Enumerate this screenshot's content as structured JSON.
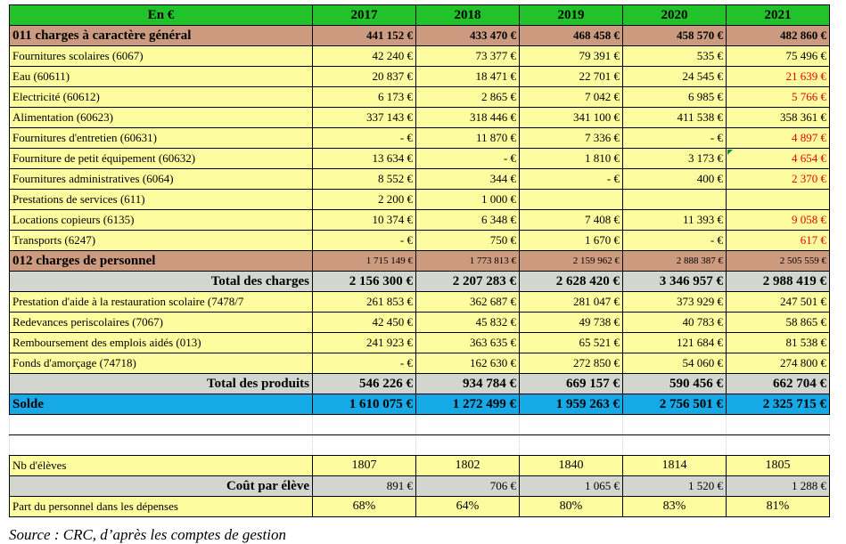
{
  "header": {
    "label": "En €",
    "years": [
      "2017",
      "2018",
      "2019",
      "2020",
      "2021"
    ]
  },
  "cat011": {
    "label": "011 charges à caractère général",
    "values": [
      "441 152 €",
      "433 470 €",
      "468 458 €",
      "458 570 €",
      "482 860 €"
    ]
  },
  "charges": [
    {
      "label": "Fournitures scolaires (6067)",
      "values": [
        "42 240 €",
        "73 377 €",
        "79 391 €",
        "535 €",
        "75 496 €"
      ],
      "red": [
        false,
        false,
        false,
        false,
        false
      ]
    },
    {
      "label": "Eau (60611)",
      "values": [
        "20 837 €",
        "18 471 €",
        "22 701 €",
        "24 545 €",
        "21 639 €"
      ],
      "red": [
        false,
        false,
        false,
        false,
        true
      ]
    },
    {
      "label": "Electricité (60612)",
      "values": [
        "6 173 €",
        "2 865 €",
        "7 042 €",
        "6 985 €",
        "5 766 €"
      ],
      "red": [
        false,
        false,
        false,
        false,
        true
      ]
    },
    {
      "label": "Alimentation (60623)",
      "values": [
        "337 143 €",
        "318 446 €",
        "341 100 €",
        "411 538 €",
        "358 361 €"
      ],
      "red": [
        false,
        false,
        false,
        false,
        false
      ]
    },
    {
      "label": "Fournitures d'entretien (60631)",
      "values": [
        "- €",
        "11 870 €",
        "7 336 €",
        "- €",
        "4 897 €"
      ],
      "red": [
        false,
        false,
        false,
        false,
        true
      ]
    },
    {
      "label": "Fourniture de petit équipement (60632)",
      "values": [
        "13 634 €",
        "- €",
        "1 810 €",
        "3 173 €",
        "4 654 €"
      ],
      "red": [
        false,
        false,
        false,
        false,
        true
      ]
    },
    {
      "label": "Fournitures administratives (6064)",
      "values": [
        "8 552 €",
        "344 €",
        "- €",
        "400 €",
        "2 370 €"
      ],
      "red": [
        false,
        false,
        false,
        false,
        true
      ]
    },
    {
      "label": "Prestations de services (611)",
      "values": [
        "2 200 €",
        "1 000 €",
        "",
        "",
        ""
      ],
      "red": [
        false,
        false,
        false,
        false,
        false
      ]
    },
    {
      "label": "Locations copieurs (6135)",
      "values": [
        "10 374 €",
        "6 348 €",
        "7 408 €",
        "11 393 €",
        "9 058 €"
      ],
      "red": [
        false,
        false,
        false,
        false,
        true
      ]
    },
    {
      "label": "Transports (6247)",
      "values": [
        "- €",
        "750 €",
        "1 670 €",
        "- €",
        "617 €"
      ],
      "red": [
        false,
        false,
        false,
        false,
        true
      ]
    }
  ],
  "cat012": {
    "label": "012 charges de personnel",
    "values": [
      "1 715 149 €",
      "1 773 813 €",
      "2 159 962 €",
      "2 888 387 €",
      "2 505 559 €"
    ]
  },
  "total_charges": {
    "label": "Total des charges",
    "values": [
      "2 156 300 €",
      "2 207 283 €",
      "2 628 420 €",
      "3 346 957 €",
      "2 988 419 €"
    ]
  },
  "produits": [
    {
      "label": "Prestation d'aide à la restauration scolaire (7478/7",
      "values": [
        "261 853 €",
        "362 687 €",
        "281 047 €",
        "373 929 €",
        "247 501 €"
      ]
    },
    {
      "label": "Redevances periscolaires (7067)",
      "values": [
        "42 450 €",
        "45 832 €",
        "49 738 €",
        "40 783 €",
        "58 865 €"
      ]
    },
    {
      "label": "Remboursement des emplois aidés (013)",
      "values": [
        "241 923 €",
        "363 635 €",
        "65 521 €",
        "121 684 €",
        "81 538 €"
      ]
    },
    {
      "label": "Fonds d'amorçage (74718)",
      "values": [
        "- €",
        "162 630 €",
        "272 850 €",
        "54 060 €",
        "274 800 €"
      ]
    }
  ],
  "total_produits": {
    "label": "Total des produits",
    "values": [
      "546 226 €",
      "934 784 €",
      "669 157 €",
      "590 456 €",
      "662 704 €"
    ]
  },
  "solde": {
    "label": "Solde",
    "values": [
      "1 610 075 €",
      "1 272 499 €",
      "1 959 263 €",
      "2 756 501 €",
      "2 325 715 €"
    ]
  },
  "nb_eleves": {
    "label": "Nb d'élèves",
    "values": [
      "1807",
      "1802",
      "1840",
      "1814",
      "1805"
    ]
  },
  "cout_eleve": {
    "label": "Coût par élève",
    "values": [
      "891 €",
      "706 €",
      "1 065 €",
      "1 520 €",
      "1 288 €"
    ]
  },
  "part_personnel": {
    "label": "Part du personnel dans les dépenses",
    "values": [
      "68%",
      "64%",
      "80%",
      "83%",
      "81%"
    ]
  },
  "source": "Source : CRC, d’après les comptes de gestion",
  "colors": {
    "header": "#22c22a",
    "category": "#cc9b7f",
    "data": "#fdfda0",
    "total": "#d3d6cf",
    "solde": "#16a9e8",
    "negative_text": "#e60000"
  }
}
